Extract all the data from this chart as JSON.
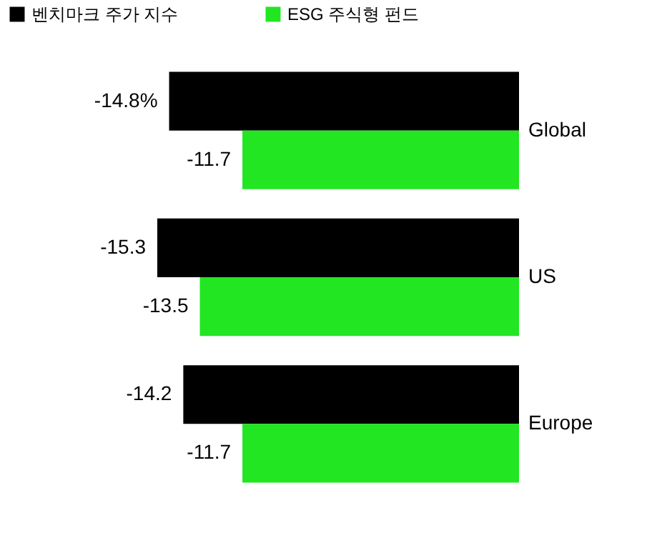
{
  "chart_data": {
    "type": "bar",
    "orientation": "horizontal",
    "categories": [
      "Global",
      "US",
      "Europe"
    ],
    "series": [
      {
        "name": "벤치마크 주가 지수",
        "color": "#000000",
        "values": [
          -14.8,
          -15.3,
          -14.2
        ],
        "value_labels": [
          "-14.8%",
          "-15.3",
          "-14.2"
        ]
      },
      {
        "name": "ESG 주식형 펀드",
        "color": "#22e622",
        "values": [
          -11.7,
          -13.5,
          -11.7
        ],
        "value_labels": [
          "-11.7",
          "-13.5",
          "-11.7"
        ]
      }
    ],
    "legend": "top left"
  }
}
